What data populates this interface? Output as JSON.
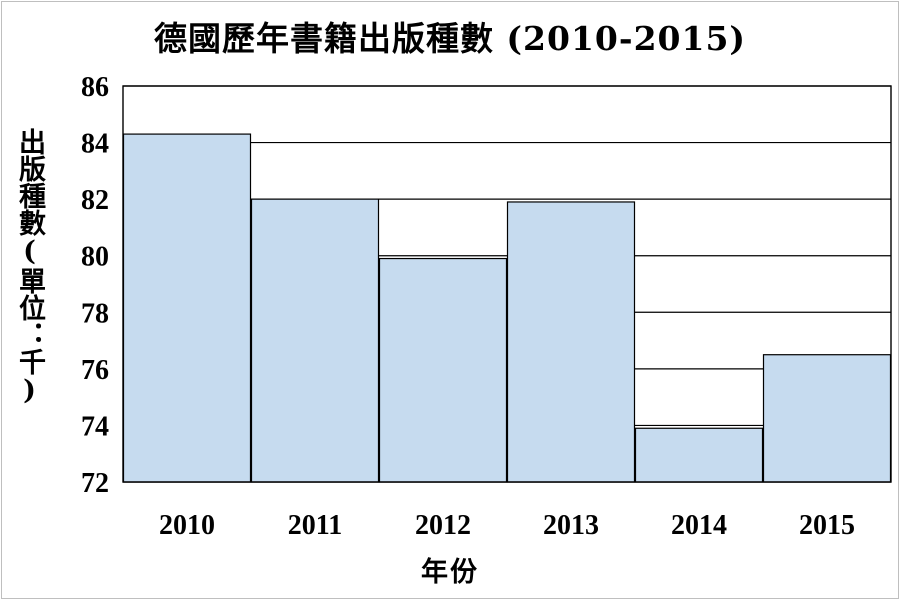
{
  "chart_data": {
    "type": "bar",
    "title": "德國歷年書籍出版種數 (2010-2015)",
    "xlabel": "年份",
    "ylabel": "出版種數(單位：千)",
    "categories": [
      "2010",
      "2011",
      "2012",
      "2013",
      "2014",
      "2015"
    ],
    "values": [
      84.3,
      82.0,
      79.9,
      81.9,
      73.9,
      76.5
    ],
    "ylim": [
      72,
      86
    ],
    "yticks": [
      72,
      74,
      76,
      78,
      80,
      82,
      84,
      86
    ],
    "grid": true,
    "legend": "none",
    "colors": {
      "bar_fill": "#c6dbef",
      "bar_stroke": "#000000",
      "grid": "#000000"
    }
  }
}
